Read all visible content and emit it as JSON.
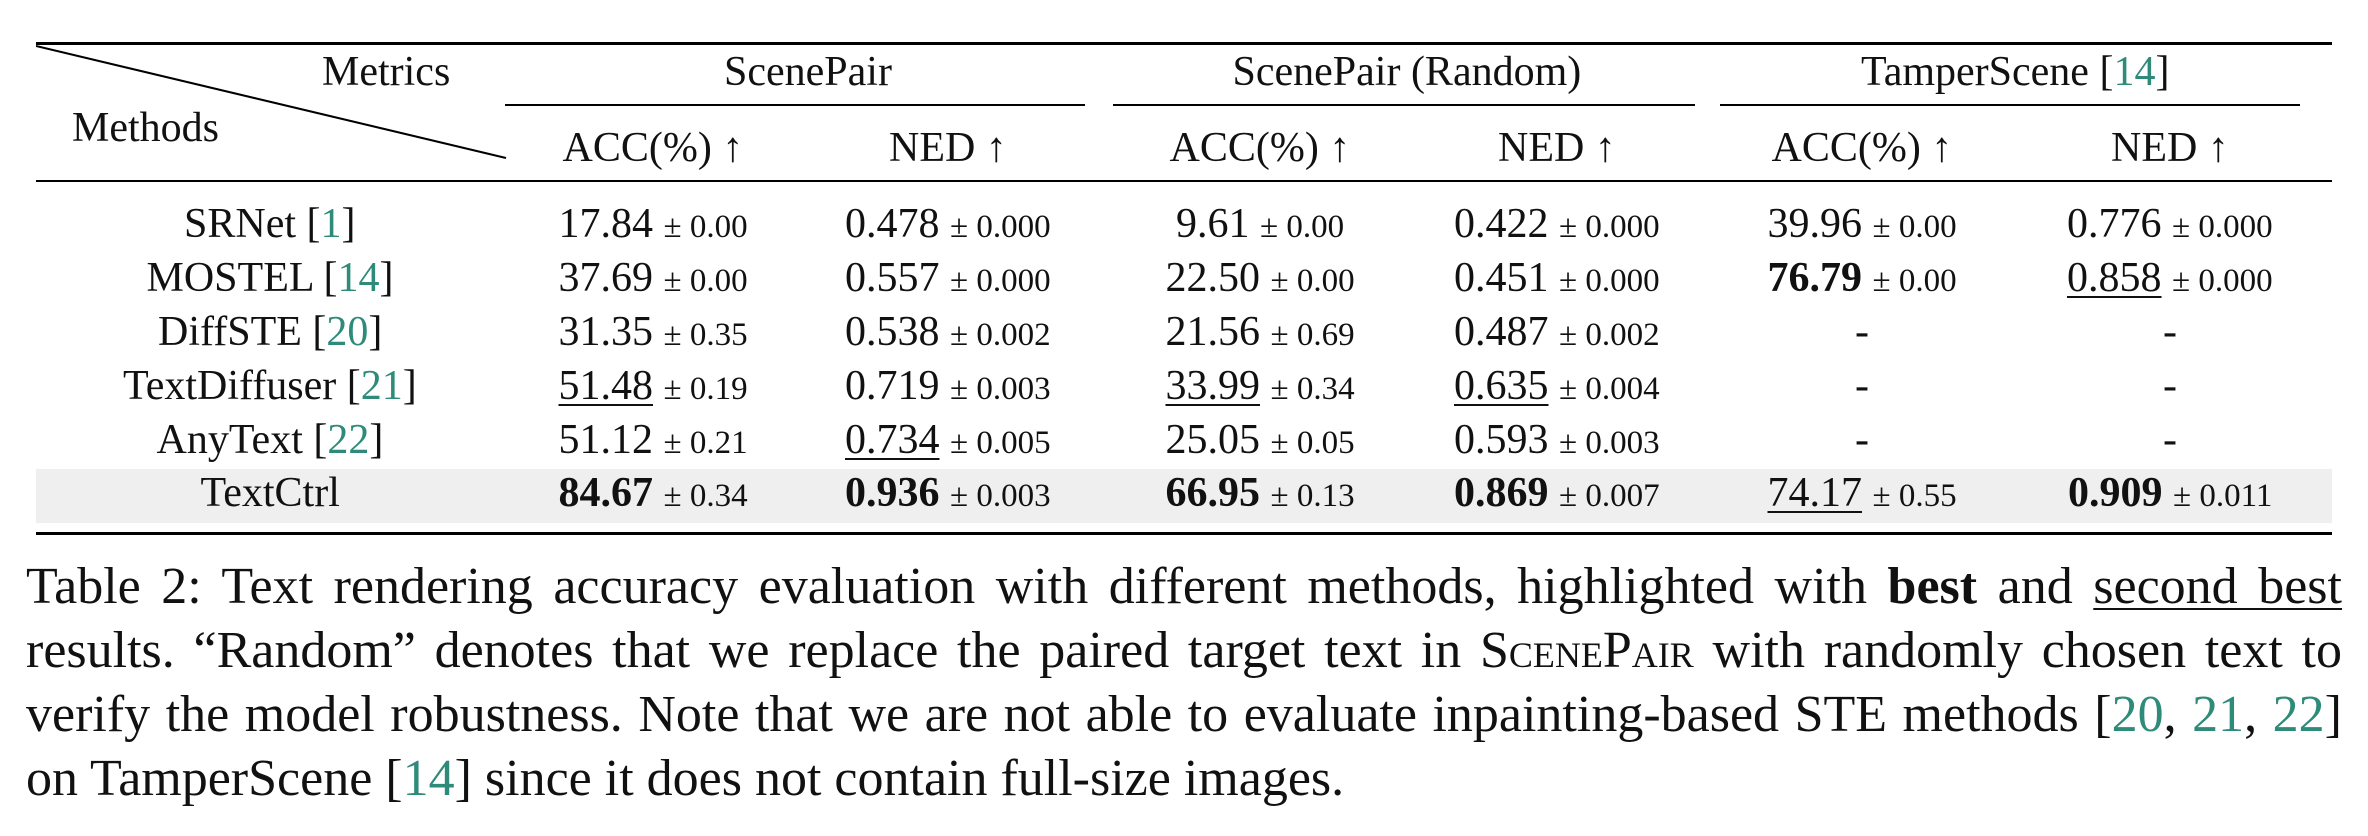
{
  "table": {
    "corner": {
      "metrics": "Metrics",
      "methods": "Methods"
    },
    "groups": [
      {
        "name": "ScenePair",
        "cite": ""
      },
      {
        "name": "ScenePair (Random)",
        "cite": ""
      },
      {
        "name": "TamperScene ",
        "cite": "14"
      }
    ],
    "metric_headers": [
      "ACC(%) ↑",
      "NED ↑",
      "ACC(%) ↑",
      "NED ↑",
      "ACC(%) ↑",
      "NED ↑"
    ],
    "rows": [
      {
        "method": "SRNet ",
        "cite": "1",
        "cells": [
          {
            "v": "17.84",
            "sd": "± 0.00",
            "s": ""
          },
          {
            "v": "0.478",
            "sd": "± 0.000",
            "s": ""
          },
          {
            "v": "9.61",
            "sd": "± 0.00",
            "s": ""
          },
          {
            "v": "0.422",
            "sd": "± 0.000",
            "s": ""
          },
          {
            "v": "39.96",
            "sd": "± 0.00",
            "s": ""
          },
          {
            "v": "0.776",
            "sd": "± 0.000",
            "s": ""
          }
        ]
      },
      {
        "method": "MOSTEL ",
        "cite": "14",
        "cells": [
          {
            "v": "37.69",
            "sd": "± 0.00",
            "s": ""
          },
          {
            "v": "0.557",
            "sd": "± 0.000",
            "s": ""
          },
          {
            "v": "22.50",
            "sd": "± 0.00",
            "s": ""
          },
          {
            "v": "0.451",
            "sd": "± 0.000",
            "s": ""
          },
          {
            "v": "76.79",
            "sd": "± 0.00",
            "s": "best"
          },
          {
            "v": "0.858",
            "sd": "± 0.000",
            "s": "second"
          }
        ]
      },
      {
        "method": "DiffSTE ",
        "cite": "20",
        "cells": [
          {
            "v": "31.35",
            "sd": "± 0.35",
            "s": ""
          },
          {
            "v": "0.538",
            "sd": "± 0.002",
            "s": ""
          },
          {
            "v": "21.56",
            "sd": "± 0.69",
            "s": ""
          },
          {
            "v": "0.487",
            "sd": "± 0.002",
            "s": ""
          },
          {
            "v": "-",
            "sd": "",
            "s": ""
          },
          {
            "v": "-",
            "sd": "",
            "s": ""
          }
        ]
      },
      {
        "method": "TextDiffuser ",
        "cite": "21",
        "cells": [
          {
            "v": "51.48",
            "sd": "± 0.19",
            "s": "second"
          },
          {
            "v": "0.719",
            "sd": "± 0.003",
            "s": ""
          },
          {
            "v": "33.99",
            "sd": "± 0.34",
            "s": "second"
          },
          {
            "v": "0.635",
            "sd": "± 0.004",
            "s": "second"
          },
          {
            "v": "-",
            "sd": "",
            "s": ""
          },
          {
            "v": "-",
            "sd": "",
            "s": ""
          }
        ]
      },
      {
        "method": "AnyText ",
        "cite": "22",
        "cells": [
          {
            "v": "51.12",
            "sd": "± 0.21",
            "s": ""
          },
          {
            "v": "0.734",
            "sd": "± 0.005",
            "s": "second"
          },
          {
            "v": "25.05",
            "sd": "± 0.05",
            "s": ""
          },
          {
            "v": "0.593",
            "sd": "± 0.003",
            "s": ""
          },
          {
            "v": "-",
            "sd": "",
            "s": ""
          },
          {
            "v": "-",
            "sd": "",
            "s": ""
          }
        ]
      },
      {
        "method": "TextCtrl",
        "cite": "",
        "cells": [
          {
            "v": "84.67",
            "sd": "± 0.34",
            "s": "best"
          },
          {
            "v": "0.936",
            "sd": "± 0.003",
            "s": "best"
          },
          {
            "v": "66.95",
            "sd": "± 0.13",
            "s": "best"
          },
          {
            "v": "0.869",
            "sd": "± 0.007",
            "s": "best"
          },
          {
            "v": "74.17",
            "sd": "± 0.55",
            "s": "second"
          },
          {
            "v": "0.909",
            "sd": "± 0.011",
            "s": "best"
          }
        ]
      }
    ]
  },
  "caption": {
    "label": "Table 2:",
    "t1": " Text rendering accuracy evaluation with different methods, highlighted with ",
    "best": "best",
    "t2": " and ",
    "second_best": "second best",
    "t3": " results. “Random” denotes that we replace the paired target text in ",
    "dataset_sc": "ScenePair",
    "t4": " with randomly chosen text to verify the model robustness. Note that we are not able to evaluate inpainting-based STE methods [",
    "c20": "20",
    "sep1": ", ",
    "c21": "21",
    "sep2": ", ",
    "c22": "22",
    "t5": "] on TamperScene [",
    "c14": "14",
    "t6": "] since it does not contain full-size images."
  }
}
